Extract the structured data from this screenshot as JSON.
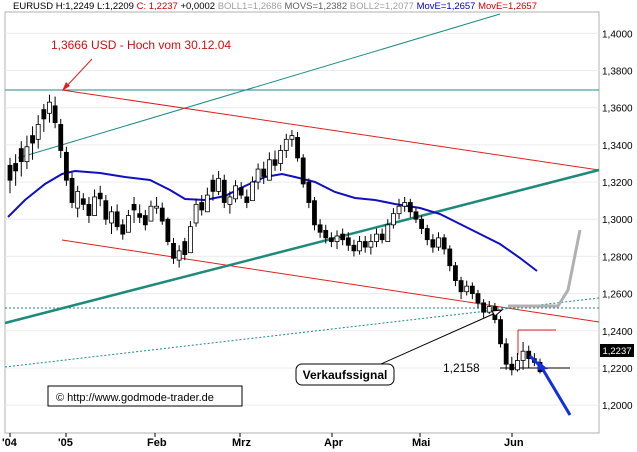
{
  "header": {
    "symbol": "EURUSD",
    "high": "H:1,2249",
    "low": "L:1,2209",
    "close": "C: 1,2237",
    "change": "+0,0002",
    "boll1": "BOLL1=1,2686",
    "movs": "MOVS=1,2382",
    "boll2": "BOLL2=1,2077",
    "movE1": "MovE=1,2657",
    "movE2": "MovE=1,2657",
    "colors": {
      "text": "#000000",
      "close": "#d00000",
      "boll": "#a0a0a0",
      "movs": "#606060",
      "movE1": "#0000c8",
      "movE2": "#d00000"
    }
  },
  "chart_data": {
    "type": "candlestick",
    "x_ticks": [
      "'04",
      "'05",
      "Feb",
      "Mrz",
      "Apr",
      "Mai",
      "Jun"
    ],
    "y_ticks": [
      "1,4000",
      "1,3800",
      "1,3600",
      "1,3400",
      "1,3200",
      "1,3000",
      "1,2800",
      "1,2600",
      "1,2400",
      "1,2200",
      "1,2000"
    ],
    "ylim": [
      1.185,
      1.4115
    ],
    "last_price": "1,2237",
    "annotations": {
      "high_label": "1,3666 USD - Hoch vom 30.12.04",
      "signal_label": "Verkaufssignal",
      "support_label": "1,2158",
      "copyright": "© http://www.godmode-trader.de"
    },
    "candles": [
      [
        1.314,
        1.329,
        1.321,
        1.333
      ],
      [
        1.318,
        1.33,
        1.326,
        1.335
      ],
      [
        1.323,
        1.338,
        1.331,
        1.342
      ],
      [
        1.327,
        1.331,
        1.339,
        1.345
      ],
      [
        1.332,
        1.345,
        1.341,
        1.35
      ],
      [
        1.338,
        1.343,
        1.351,
        1.356
      ],
      [
        1.347,
        1.359,
        1.354,
        1.362
      ],
      [
        1.352,
        1.357,
        1.363,
        1.367
      ],
      [
        1.349,
        1.361,
        1.352,
        1.366
      ],
      [
        1.333,
        1.351,
        1.337,
        1.354
      ],
      [
        1.318,
        1.336,
        1.321,
        1.339
      ],
      [
        1.306,
        1.322,
        1.309,
        1.325
      ],
      [
        1.301,
        1.306,
        1.315,
        1.318
      ],
      [
        1.305,
        1.311,
        1.308,
        1.314
      ],
      [
        1.298,
        1.308,
        1.302,
        1.312
      ],
      [
        1.302,
        1.302,
        1.312,
        1.316
      ],
      [
        1.307,
        1.314,
        1.311,
        1.318
      ],
      [
        1.297,
        1.31,
        1.3,
        1.313
      ],
      [
        1.292,
        1.298,
        1.304,
        1.307
      ],
      [
        1.294,
        1.304,
        1.296,
        1.308
      ],
      [
        1.289,
        1.297,
        1.292,
        1.3
      ],
      [
        1.293,
        1.293,
        1.302,
        1.305
      ],
      [
        1.298,
        1.308,
        1.305,
        1.312
      ],
      [
        1.298,
        1.303,
        1.301,
        1.308
      ],
      [
        1.294,
        1.302,
        1.297,
        1.305
      ],
      [
        1.299,
        1.299,
        1.307,
        1.31
      ],
      [
        1.303,
        1.306,
        1.307,
        1.312
      ],
      [
        1.297,
        1.306,
        1.299,
        1.309
      ],
      [
        1.286,
        1.3,
        1.288,
        1.301
      ],
      [
        1.276,
        1.287,
        1.279,
        1.29
      ],
      [
        1.274,
        1.278,
        1.283,
        1.286
      ],
      [
        1.278,
        1.288,
        1.281,
        1.29
      ],
      [
        1.282,
        1.282,
        1.296,
        1.299
      ],
      [
        1.296,
        1.298,
        1.308,
        1.311
      ],
      [
        1.302,
        1.309,
        1.305,
        1.313
      ],
      [
        1.304,
        1.304,
        1.313,
        1.317
      ],
      [
        1.31,
        1.321,
        1.315,
        1.324
      ],
      [
        1.313,
        1.315,
        1.322,
        1.326
      ],
      [
        1.306,
        1.321,
        1.309,
        1.324
      ],
      [
        1.303,
        1.308,
        1.312,
        1.315
      ],
      [
        1.309,
        1.311,
        1.318,
        1.321
      ],
      [
        1.311,
        1.317,
        1.313,
        1.32
      ],
      [
        1.306,
        1.312,
        1.309,
        1.316
      ],
      [
        1.31,
        1.31,
        1.32,
        1.323
      ],
      [
        1.316,
        1.32,
        1.327,
        1.33
      ],
      [
        1.319,
        1.327,
        1.323,
        1.331
      ],
      [
        1.321,
        1.321,
        1.332,
        1.336
      ],
      [
        1.326,
        1.332,
        1.329,
        1.337
      ],
      [
        1.326,
        1.33,
        1.337,
        1.34
      ],
      [
        1.333,
        1.337,
        1.343,
        1.346
      ],
      [
        1.339,
        1.343,
        1.345,
        1.348
      ],
      [
        1.331,
        1.344,
        1.333,
        1.347
      ],
      [
        1.317,
        1.333,
        1.319,
        1.335
      ],
      [
        1.306,
        1.32,
        1.309,
        1.322
      ],
      [
        1.294,
        1.31,
        1.297,
        1.312
      ],
      [
        1.29,
        1.297,
        1.293,
        1.3
      ],
      [
        1.287,
        1.294,
        1.29,
        1.297
      ],
      [
        1.285,
        1.29,
        1.288,
        1.293
      ],
      [
        1.284,
        1.288,
        1.291,
        1.294
      ],
      [
        1.286,
        1.292,
        1.289,
        1.295
      ],
      [
        1.283,
        1.29,
        1.286,
        1.293
      ],
      [
        1.28,
        1.286,
        1.283,
        1.289
      ],
      [
        1.281,
        1.283,
        1.288,
        1.291
      ],
      [
        1.282,
        1.288,
        1.285,
        1.291
      ],
      [
        1.281,
        1.285,
        1.288,
        1.292
      ],
      [
        1.285,
        1.288,
        1.292,
        1.295
      ],
      [
        1.287,
        1.292,
        1.289,
        1.295
      ],
      [
        1.288,
        1.288,
        1.297,
        1.3
      ],
      [
        1.295,
        1.297,
        1.303,
        1.306
      ],
      [
        1.3,
        1.303,
        1.307,
        1.311
      ],
      [
        1.304,
        1.307,
        1.309,
        1.312
      ],
      [
        1.301,
        1.309,
        1.304,
        1.311
      ],
      [
        1.298,
        1.304,
        1.3,
        1.306
      ],
      [
        1.292,
        1.3,
        1.295,
        1.302
      ],
      [
        1.286,
        1.295,
        1.289,
        1.297
      ],
      [
        1.282,
        1.289,
        1.285,
        1.292
      ],
      [
        1.283,
        1.285,
        1.29,
        1.293
      ],
      [
        1.281,
        1.29,
        1.284,
        1.292
      ],
      [
        1.272,
        1.284,
        1.275,
        1.286
      ],
      [
        1.264,
        1.275,
        1.267,
        1.277
      ],
      [
        1.257,
        1.267,
        1.261,
        1.269
      ],
      [
        1.259,
        1.261,
        1.264,
        1.267
      ],
      [
        1.257,
        1.264,
        1.26,
        1.266
      ],
      [
        1.252,
        1.26,
        1.255,
        1.262
      ],
      [
        1.247,
        1.255,
        1.25,
        1.257
      ],
      [
        1.249,
        1.25,
        1.253,
        1.256
      ],
      [
        1.244,
        1.253,
        1.246,
        1.255
      ],
      [
        1.231,
        1.246,
        1.233,
        1.248
      ],
      [
        1.219,
        1.233,
        1.222,
        1.236
      ],
      [
        1.216,
        1.222,
        1.219,
        1.226
      ],
      [
        1.218,
        1.219,
        1.224,
        1.228
      ],
      [
        1.219,
        1.224,
        1.229,
        1.234
      ],
      [
        1.22,
        1.229,
        1.225,
        1.232
      ],
      [
        1.221,
        1.225,
        1.223,
        1.228
      ],
      [
        1.217,
        1.223,
        1.218,
        1.225
      ]
    ]
  }
}
